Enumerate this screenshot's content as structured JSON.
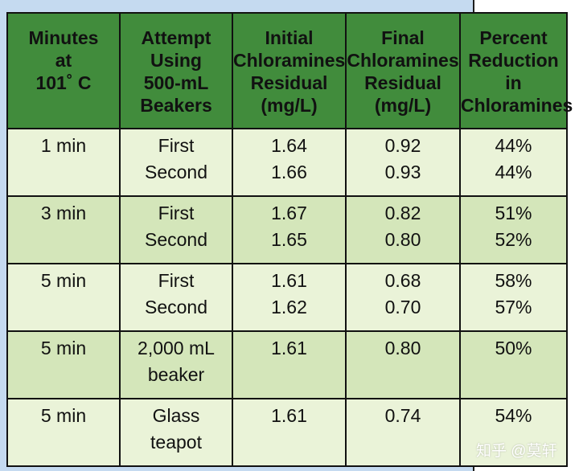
{
  "table": {
    "headers": [
      [
        "Minutes",
        "at",
        "101˚ C"
      ],
      [
        "Attempt",
        "Using",
        "500-mL",
        "Beakers"
      ],
      [
        "Initial",
        "Chloramines",
        "Residual",
        "(mg/L)"
      ],
      [
        "Final",
        "Chloramines",
        "Residual",
        "(mg/L)"
      ],
      [
        "Percent",
        "Reduction",
        "in",
        "Chloramines"
      ]
    ],
    "rows": [
      {
        "minutes": "1 min",
        "attempt": [
          "First",
          "Second"
        ],
        "initial": [
          "1.64",
          "1.66"
        ],
        "final": [
          "0.92",
          "0.93"
        ],
        "percent": [
          "44%",
          "44%"
        ]
      },
      {
        "minutes": "3 min",
        "attempt": [
          "First",
          "Second"
        ],
        "initial": [
          "1.67",
          "1.65"
        ],
        "final": [
          "0.82",
          "0.80"
        ],
        "percent": [
          "51%",
          "52%"
        ]
      },
      {
        "minutes": "5 min",
        "attempt": [
          "First",
          "Second"
        ],
        "initial": [
          "1.61",
          "1.62"
        ],
        "final": [
          "0.68",
          "0.70"
        ],
        "percent": [
          "58%",
          "57%"
        ]
      },
      {
        "minutes": "5 min",
        "attempt": [
          "2,000 mL",
          "beaker"
        ],
        "initial": [
          "1.61"
        ],
        "final": [
          "0.80"
        ],
        "percent": [
          "50%"
        ]
      },
      {
        "minutes": "5 min",
        "attempt": [
          "Glass",
          "teapot"
        ],
        "initial": [
          "1.61"
        ],
        "final": [
          "0.74"
        ],
        "percent": [
          "54%"
        ]
      }
    ]
  },
  "watermark": "知乎 @莫轩",
  "colors": {
    "header_green": "#418c3c",
    "row_light": "#eaf3d8",
    "row_dark": "#d4e6ba",
    "background_blue": "#c5daf0"
  }
}
